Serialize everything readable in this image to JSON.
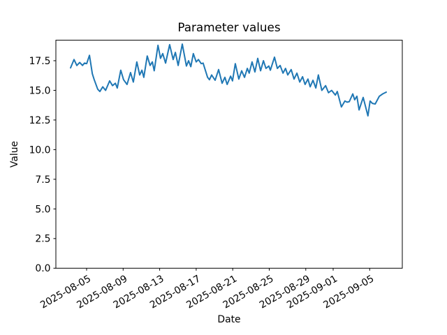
{
  "chart_data": {
    "type": "line",
    "title": "Parameter values",
    "xlabel": "Date",
    "ylabel": "Value",
    "grid": false,
    "legend": null,
    "background_color": "#ffffff",
    "frame_color": "#000000",
    "line_color": "#1f77b4",
    "ylim": [
      0.0,
      19.23
    ],
    "yticks": {
      "values": [
        0.0,
        2.5,
        5.0,
        7.5,
        10.0,
        12.5,
        15.0,
        17.5
      ],
      "labels": [
        "0.0",
        "2.5",
        "5.0",
        "7.5",
        "10.0",
        "12.5",
        "15.0",
        "17.5"
      ]
    },
    "xticks": {
      "labels": [
        "2025-08-05",
        "2025-08-09",
        "2025-08-13",
        "2025-08-17",
        "2025-08-21",
        "2025-08-25",
        "2025-08-29",
        "2025-09-01",
        "2025-09-05"
      ],
      "rotation_deg": 30
    },
    "x_start_date_approx": "2025-08-03",
    "x_end_date_approx": "2025-09-07",
    "series": [
      {
        "color": "#1f77b4",
        "points": [
          [
            0.0,
            16.9
          ],
          [
            0.011,
            17.6
          ],
          [
            0.02,
            17.1
          ],
          [
            0.029,
            17.35
          ],
          [
            0.038,
            17.1
          ],
          [
            0.044,
            17.3
          ],
          [
            0.051,
            17.25
          ],
          [
            0.06,
            17.95
          ],
          [
            0.069,
            16.4
          ],
          [
            0.075,
            15.9
          ],
          [
            0.086,
            15.1
          ],
          [
            0.093,
            14.9
          ],
          [
            0.102,
            15.3
          ],
          [
            0.111,
            15.0
          ],
          [
            0.124,
            15.8
          ],
          [
            0.133,
            15.4
          ],
          [
            0.142,
            15.6
          ],
          [
            0.148,
            15.2
          ],
          [
            0.159,
            16.7
          ],
          [
            0.168,
            15.9
          ],
          [
            0.179,
            15.5
          ],
          [
            0.19,
            16.5
          ],
          [
            0.199,
            15.7
          ],
          [
            0.21,
            17.4
          ],
          [
            0.219,
            16.3
          ],
          [
            0.226,
            16.7
          ],
          [
            0.232,
            16.1
          ],
          [
            0.243,
            17.9
          ],
          [
            0.252,
            17.1
          ],
          [
            0.259,
            17.4
          ],
          [
            0.265,
            16.65
          ],
          [
            0.277,
            18.8
          ],
          [
            0.285,
            17.7
          ],
          [
            0.292,
            18.1
          ],
          [
            0.301,
            17.3
          ],
          [
            0.314,
            18.85
          ],
          [
            0.325,
            17.6
          ],
          [
            0.332,
            18.2
          ],
          [
            0.341,
            17.1
          ],
          [
            0.354,
            18.9
          ],
          [
            0.367,
            17.05
          ],
          [
            0.374,
            17.5
          ],
          [
            0.381,
            17.0
          ],
          [
            0.389,
            18.1
          ],
          [
            0.398,
            17.4
          ],
          [
            0.405,
            17.6
          ],
          [
            0.414,
            17.25
          ],
          [
            0.42,
            17.3
          ],
          [
            0.434,
            16.1
          ],
          [
            0.44,
            15.9
          ],
          [
            0.447,
            16.3
          ],
          [
            0.458,
            15.85
          ],
          [
            0.469,
            16.75
          ],
          [
            0.48,
            15.6
          ],
          [
            0.489,
            16.1
          ],
          [
            0.496,
            15.5
          ],
          [
            0.507,
            16.2
          ],
          [
            0.513,
            15.8
          ],
          [
            0.522,
            17.25
          ],
          [
            0.533,
            15.95
          ],
          [
            0.542,
            16.65
          ],
          [
            0.551,
            16.1
          ],
          [
            0.56,
            16.85
          ],
          [
            0.566,
            16.45
          ],
          [
            0.575,
            17.4
          ],
          [
            0.584,
            16.55
          ],
          [
            0.593,
            17.7
          ],
          [
            0.602,
            16.65
          ],
          [
            0.611,
            17.5
          ],
          [
            0.619,
            16.85
          ],
          [
            0.628,
            17.05
          ],
          [
            0.633,
            16.7
          ],
          [
            0.646,
            17.8
          ],
          [
            0.655,
            16.85
          ],
          [
            0.664,
            17.1
          ],
          [
            0.673,
            16.45
          ],
          [
            0.681,
            16.85
          ],
          [
            0.688,
            16.3
          ],
          [
            0.699,
            16.75
          ],
          [
            0.708,
            15.95
          ],
          [
            0.717,
            16.45
          ],
          [
            0.726,
            15.7
          ],
          [
            0.735,
            16.15
          ],
          [
            0.743,
            15.5
          ],
          [
            0.752,
            15.95
          ],
          [
            0.759,
            15.3
          ],
          [
            0.768,
            15.85
          ],
          [
            0.777,
            15.2
          ],
          [
            0.785,
            16.3
          ],
          [
            0.796,
            15.0
          ],
          [
            0.808,
            15.4
          ],
          [
            0.817,
            14.8
          ],
          [
            0.827,
            15.0
          ],
          [
            0.839,
            14.6
          ],
          [
            0.845,
            14.9
          ],
          [
            0.858,
            13.6
          ],
          [
            0.869,
            14.1
          ],
          [
            0.876,
            14.0
          ],
          [
            0.883,
            14.05
          ],
          [
            0.894,
            14.7
          ],
          [
            0.9,
            14.2
          ],
          [
            0.907,
            14.5
          ],
          [
            0.914,
            13.35
          ],
          [
            0.927,
            14.4
          ],
          [
            0.942,
            12.85
          ],
          [
            0.949,
            14.1
          ],
          [
            0.956,
            13.9
          ],
          [
            0.965,
            13.85
          ],
          [
            0.978,
            14.5
          ],
          [
            0.989,
            14.7
          ],
          [
            1.0,
            14.85
          ]
        ]
      }
    ]
  }
}
